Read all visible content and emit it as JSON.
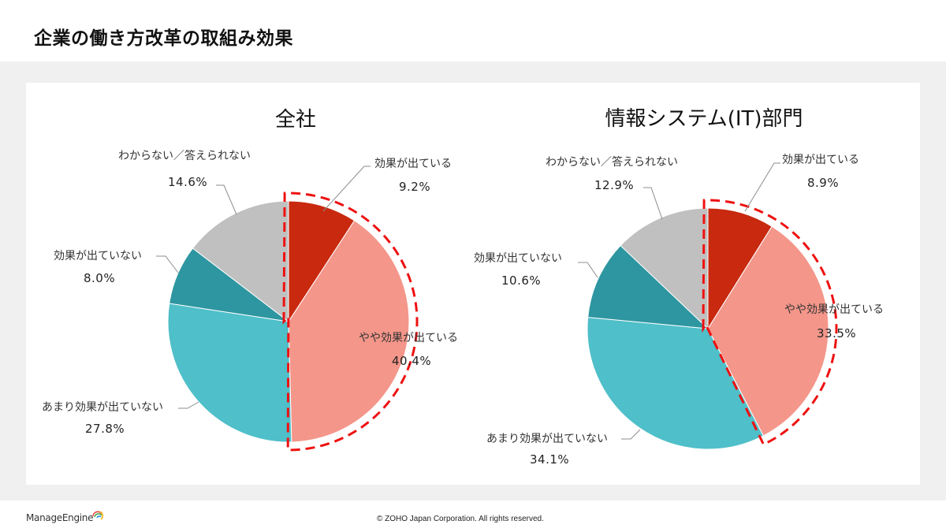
{
  "page": {
    "title": "企業の働き方改革の取組み効果",
    "footer": {
      "logo_text": "ManageEngine",
      "copyright": "© ZOHO Japan Corporation. All rights reserved."
    }
  },
  "colors": {
    "effective": "#c8290f",
    "somewhat_effective": "#f4968a",
    "not_very_effective": "#4fbfc9",
    "not_effective": "#2e96a0",
    "unknown": "#c0c0c0",
    "highlight_dash": "#ee1111",
    "leader": "#8c8c8c"
  },
  "chart_data": [
    {
      "type": "pie",
      "title": "全社",
      "start": "12 o'clock, clockwise",
      "slices": [
        {
          "label": "効果が出ている",
          "value": 9.2,
          "display": "9.2%",
          "color_key": "effective"
        },
        {
          "label": "やや効果が出ている",
          "value": 40.4,
          "display": "40.4%",
          "color_key": "somewhat_effective"
        },
        {
          "label": "あまり効果が出ていない",
          "value": 27.8,
          "display": "27.8%",
          "color_key": "not_very_effective"
        },
        {
          "label": "効果が出ていない",
          "value": 8.0,
          "display": "8.0%",
          "color_key": "not_effective"
        },
        {
          "label": "わからない／答えられない",
          "value": 14.6,
          "display": "14.6%",
          "color_key": "unknown"
        }
      ],
      "highlighted_slices": [
        "効果が出ている",
        "やや効果が出ている"
      ]
    },
    {
      "type": "pie",
      "title": "情報システム(IT)部門",
      "start": "12 o'clock, clockwise",
      "slices": [
        {
          "label": "効果が出ている",
          "value": 8.9,
          "display": "8.9%",
          "color_key": "effective"
        },
        {
          "label": "やや効果が出ている",
          "value": 33.5,
          "display": "33.5%",
          "color_key": "somewhat_effective"
        },
        {
          "label": "あまり効果が出ていない",
          "value": 34.1,
          "display": "34.1%",
          "color_key": "not_very_effective"
        },
        {
          "label": "効果が出ていない",
          "value": 10.6,
          "display": "10.6%",
          "color_key": "not_effective"
        },
        {
          "label": "わからない／答えられない",
          "value": 12.9,
          "display": "12.9%",
          "color_key": "unknown"
        }
      ],
      "highlighted_slices": [
        "効果が出ている",
        "やや効果が出ている"
      ]
    }
  ]
}
